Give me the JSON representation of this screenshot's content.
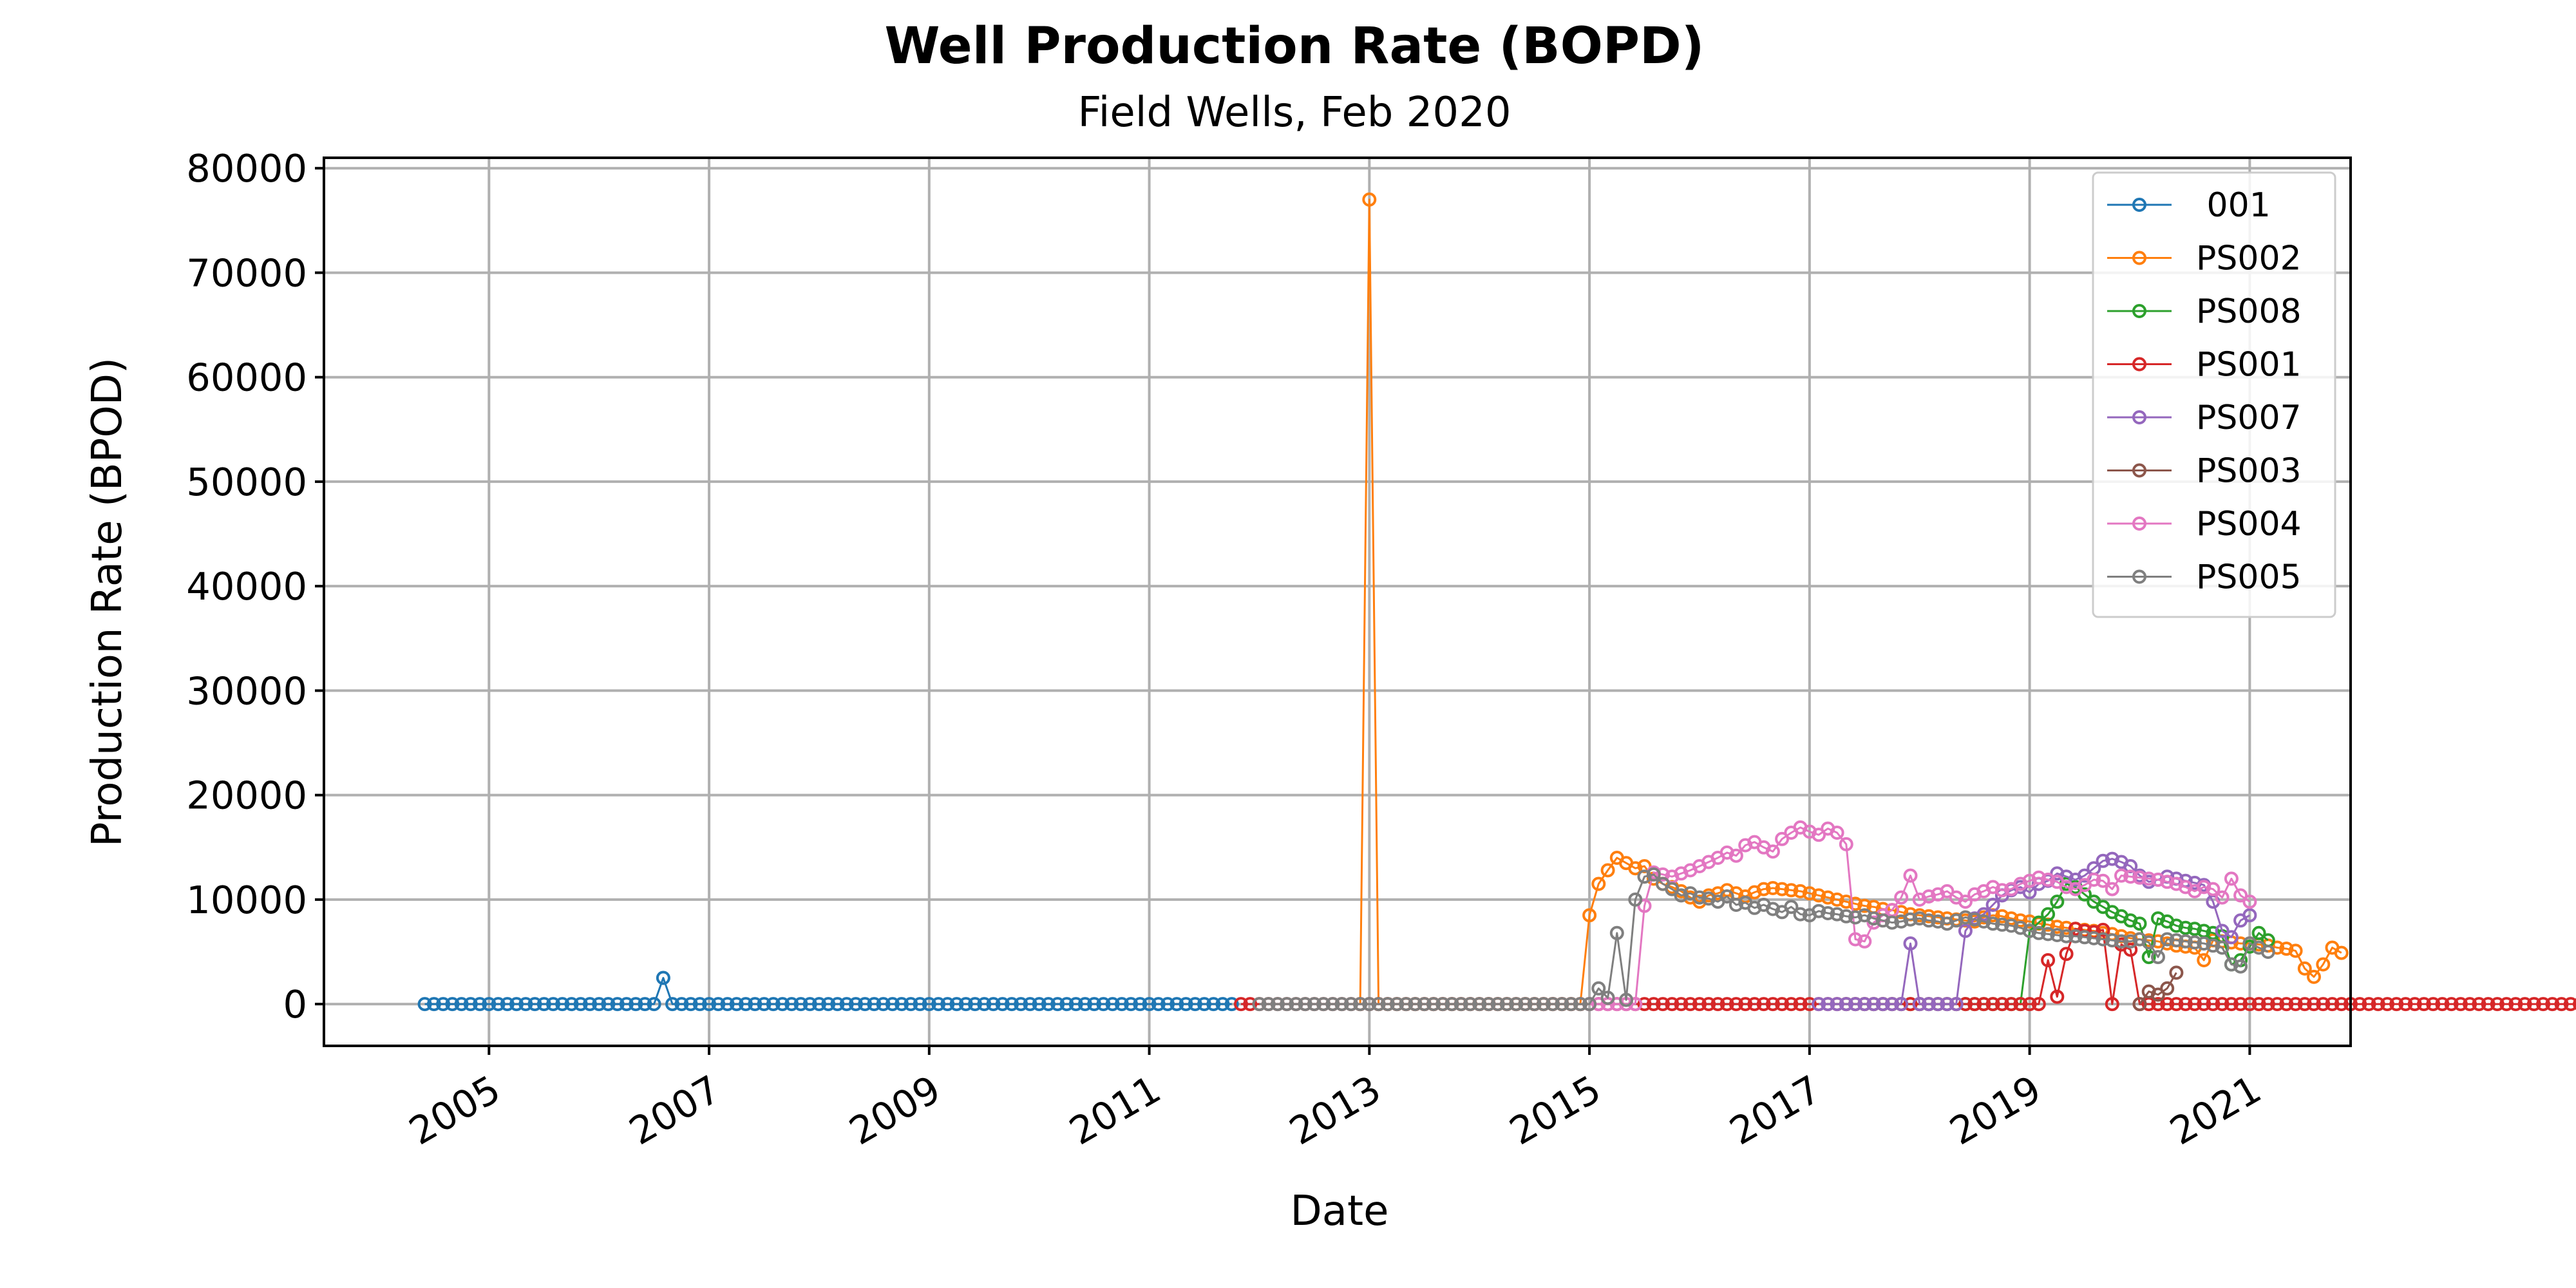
{
  "chart_data": {
    "type": "line",
    "title": "Well Production Rate (BOPD)",
    "subtitle": "Field Wells, Feb 2020",
    "xlabel": "Date",
    "ylabel": "Production Rate (BPOD)",
    "xlim": [
      "2003-07-01",
      "2021-12-01"
    ],
    "ylim": [
      -4000,
      81000
    ],
    "x_ticks": [
      "2005",
      "2007",
      "2009",
      "2011",
      "2013",
      "2015",
      "2017",
      "2019",
      "2021"
    ],
    "y_ticks": [
      0,
      10000,
      20000,
      30000,
      40000,
      50000,
      60000,
      70000,
      80000
    ],
    "grid": true,
    "legend_position": "top-right",
    "series": [
      {
        "name": " 001",
        "color": "#1f77b4",
        "start": "2004-06-01",
        "values": [
          0,
          0,
          0,
          0,
          0,
          0,
          0,
          0,
          0,
          0,
          0,
          0,
          0,
          0,
          0,
          0,
          0,
          0,
          0,
          0,
          0,
          0,
          0,
          0,
          0,
          0,
          2500,
          0,
          0,
          0,
          0,
          0,
          0,
          0,
          0,
          0,
          0,
          0,
          0,
          0,
          0,
          0,
          0,
          0,
          0,
          0,
          0,
          0,
          0,
          0,
          0,
          0,
          0,
          0,
          0,
          0,
          0,
          0,
          0,
          0,
          0,
          0,
          0,
          0,
          0,
          0,
          0,
          0,
          0,
          0,
          0,
          0,
          0,
          0,
          0,
          0,
          0,
          0,
          0,
          0,
          0,
          0,
          0,
          0,
          0,
          0,
          0,
          0,
          0
        ]
      },
      {
        "name": "PS002",
        "color": "#ff7f0e",
        "start": "2012-12-01",
        "values": [
          0,
          77000,
          0,
          0,
          0,
          0,
          0,
          0,
          0,
          0,
          0,
          0,
          0,
          0,
          0,
          0,
          0,
          0,
          0,
          0,
          0,
          0,
          0,
          0,
          0,
          8500,
          11500,
          12800,
          14000,
          13500,
          13000,
          13200,
          12000,
          11500,
          11200,
          10800,
          10200,
          9800,
          10400,
          10600,
          10900,
          10600,
          10300,
          10700,
          11000,
          11100,
          11000,
          10900,
          10800,
          10600,
          10400,
          10200,
          10000,
          9800,
          9600,
          9400,
          9300,
          9100,
          9000,
          8800,
          8600,
          8500,
          8400,
          8300,
          8200,
          8100,
          8000,
          7900,
          8300,
          8500,
          8400,
          8200,
          8000,
          7900,
          7700,
          7600,
          7400,
          7300,
          7200,
          7100,
          7000,
          6800,
          6700,
          6500,
          6300,
          6200,
          6100,
          6000,
          5800,
          5600,
          5500,
          5400,
          4200,
          6100,
          6000,
          5900,
          5800,
          5800,
          5700,
          5600,
          5400,
          5300,
          5100,
          3400,
          2600,
          3800,
          5400,
          4900
        ]
      },
      {
        "name": "PS008",
        "color": "#2ca02c",
        "start": "2017-05-01",
        "values": [
          0,
          0,
          0,
          0,
          0,
          0,
          0,
          0,
          0,
          0,
          0,
          0,
          0,
          0,
          0,
          0,
          0,
          0,
          0,
          0,
          7000,
          7800,
          8600,
          9800,
          11500,
          11200,
          10500,
          9800,
          9300,
          8800,
          8400,
          8000,
          7700,
          4500,
          8200,
          7900,
          7500,
          7300,
          7200,
          7000,
          6800,
          6500,
          3800,
          4200,
          5500,
          6800,
          6100
        ]
      },
      {
        "name": "PS001",
        "color": "#d62728",
        "start": "2011-11-01",
        "values": [
          0,
          0,
          0,
          0,
          0,
          0,
          0,
          0,
          0,
          0,
          0,
          0,
          0,
          0,
          0,
          0,
          0,
          0,
          0,
          0,
          0,
          0,
          0,
          0,
          0,
          0,
          0,
          0,
          0,
          0,
          0,
          0,
          0,
          0,
          0,
          0,
          0,
          0,
          0,
          0,
          0,
          0,
          0,
          0,
          0,
          0,
          0,
          0,
          0,
          0,
          0,
          0,
          0,
          0,
          0,
          0,
          0,
          0,
          0,
          0,
          0,
          0,
          0,
          0,
          0,
          0,
          0,
          0,
          0,
          0,
          0,
          0,
          0,
          0,
          0,
          0,
          0,
          0,
          0,
          0,
          0,
          0,
          0,
          0,
          0,
          0,
          0,
          0,
          4200,
          700,
          4800,
          7200,
          7000,
          6900,
          7100,
          0,
          5700,
          5200,
          0,
          0,
          0,
          0,
          0,
          0,
          0,
          0,
          0,
          0,
          0,
          0,
          0,
          0,
          0,
          0,
          0,
          0,
          0,
          0,
          0,
          0,
          0,
          0,
          0,
          0,
          0,
          0,
          0,
          0,
          0,
          0,
          0,
          0,
          0,
          0,
          0,
          0,
          0,
          0,
          0,
          0,
          0,
          0,
          0,
          0,
          0,
          0,
          0,
          0,
          0,
          0,
          0,
          0,
          0,
          0,
          0,
          0,
          0,
          0,
          0,
          0,
          0,
          0,
          0,
          0,
          0,
          0,
          0,
          0,
          0,
          0,
          0,
          0
        ]
      },
      {
        "name": "PS007",
        "color": "#9467bd",
        "start": "2017-02-01",
        "values": [
          0,
          0,
          0,
          0,
          0,
          0,
          0,
          0,
          0,
          0,
          5800,
          0,
          0,
          0,
          0,
          0,
          7000,
          8200,
          8600,
          9500,
          10400,
          10900,
          11200,
          10700,
          11500,
          11800,
          12500,
          12200,
          11900,
          12300,
          13000,
          13700,
          13900,
          13600,
          13200,
          12300,
          11700,
          11900,
          12200,
          12000,
          11800,
          11600,
          11400,
          9800,
          7000,
          6400,
          8000,
          8500
        ]
      },
      {
        "name": "PS003",
        "color": "#8c564b",
        "start": "2020-01-01",
        "values": [
          0,
          1200,
          900,
          1500,
          3000
        ]
      },
      {
        "name": "PS004",
        "color": "#e377c2",
        "start": "2015-01-01",
        "values": [
          0,
          0,
          0,
          0,
          0,
          0,
          9400,
          12600,
          12400,
          12200,
          12500,
          12800,
          13200,
          13600,
          14000,
          14500,
          14200,
          15200,
          15500,
          15000,
          14600,
          15800,
          16400,
          16900,
          16500,
          16200,
          16800,
          16400,
          15300,
          6200,
          6000,
          7800,
          8500,
          9000,
          10200,
          12300,
          10000,
          10300,
          10500,
          10800,
          10200,
          9800,
          10500,
          10800,
          11200,
          10900,
          11000,
          11500,
          11800,
          12100,
          11900,
          11700,
          11200,
          11000,
          11400,
          11900,
          11800,
          11000,
          12300,
          12200,
          12100,
          12000,
          11900,
          11700,
          11500,
          11200,
          10800,
          11200,
          11000,
          10200,
          12000,
          10400,
          9800
        ]
      },
      {
        "name": "PS005",
        "color": "#7f7f7f",
        "start": "2012-01-01",
        "values": [
          0,
          0,
          0,
          0,
          0,
          0,
          0,
          0,
          0,
          0,
          0,
          0,
          0,
          0,
          0,
          0,
          0,
          0,
          0,
          0,
          0,
          0,
          0,
          0,
          0,
          0,
          0,
          0,
          0,
          0,
          0,
          0,
          0,
          0,
          0,
          0,
          0,
          1500,
          600,
          6800,
          400,
          10000,
          12200,
          12400,
          11500,
          11000,
          10400,
          10600,
          10200,
          10100,
          9800,
          10300,
          9500,
          9700,
          9200,
          9500,
          9100,
          8800,
          9300,
          8600,
          8500,
          8900,
          8700,
          8600,
          8400,
          8300,
          8500,
          8200,
          8000,
          7800,
          7900,
          8100,
          8200,
          8000,
          7900,
          7700,
          8000,
          8300,
          8100,
          7900,
          7700,
          7600,
          7500,
          7300,
          7000,
          6800,
          6700,
          6600,
          6500,
          6500,
          6400,
          6300,
          6200,
          6100,
          6000,
          6000,
          6200,
          5900,
          4500,
          6200,
          6100,
          6000,
          5900,
          5800,
          5600,
          5400,
          3800,
          3600,
          5800,
          5400,
          5000
        ]
      }
    ]
  }
}
